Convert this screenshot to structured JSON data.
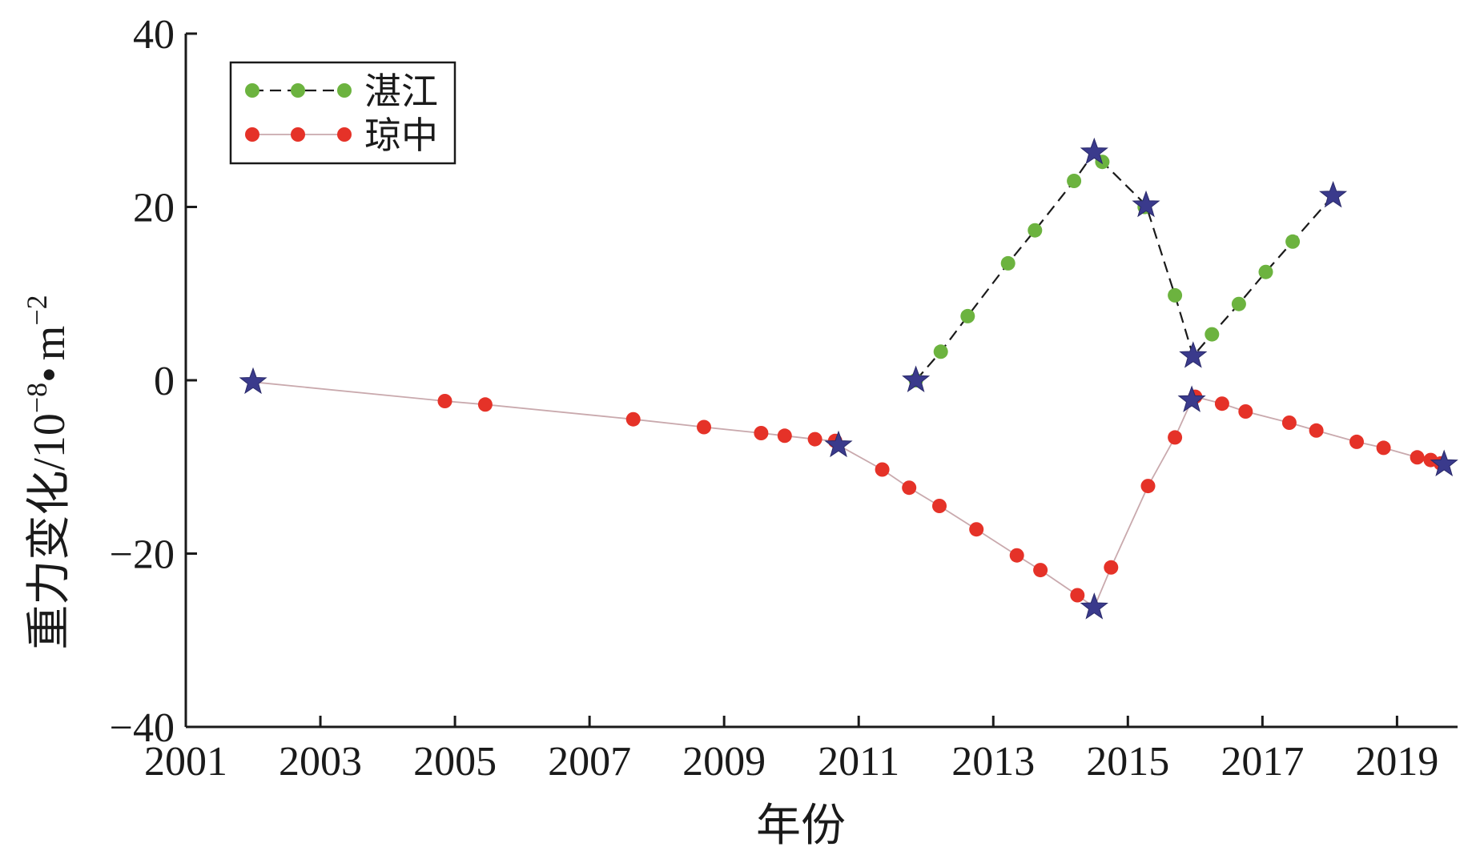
{
  "chart_data": {
    "type": "line",
    "title": "",
    "xlabel": "年份",
    "ylabel": {
      "main": "重力变化/10",
      "exp1": "−8",
      "dot": "•",
      "unit": "m",
      "exp2": "−2"
    },
    "xlim": [
      2001,
      2019.9
    ],
    "ylim": [
      -40,
      40
    ],
    "xticks": [
      2001,
      2003,
      2005,
      2007,
      2009,
      2011,
      2013,
      2015,
      2017,
      2019
    ],
    "xtick_labels": [
      "2001",
      "2003",
      "2005",
      "2007",
      "2009",
      "2011",
      "2013",
      "2015",
      "2017",
      "2019"
    ],
    "yticks": [
      -40,
      -20,
      0,
      20,
      40
    ],
    "ytick_labels": [
      "−40",
      "−20",
      "0",
      "20",
      "40"
    ],
    "legend_position": "top-left",
    "series": [
      {
        "name": "湛江",
        "color": "#6cb33f",
        "line_color": "#1a1a1a",
        "line_style": "dashed",
        "points": [
          [
            2011.85,
            0.0
          ],
          [
            2012.22,
            3.3
          ],
          [
            2012.62,
            7.4
          ],
          [
            2013.22,
            13.5
          ],
          [
            2013.62,
            17.3
          ],
          [
            2014.2,
            23.0
          ],
          [
            2014.62,
            25.2
          ],
          [
            2015.25,
            20.0
          ],
          [
            2015.7,
            9.8
          ],
          [
            2016.25,
            5.3
          ],
          [
            2016.65,
            8.8
          ],
          [
            2017.05,
            12.5
          ],
          [
            2017.45,
            16.0
          ]
        ],
        "star_points": [
          [
            2011.85,
            0.0
          ],
          [
            2014.5,
            26.3
          ],
          [
            2015.27,
            20.2
          ],
          [
            2015.97,
            2.8
          ],
          [
            2018.05,
            21.3
          ]
        ],
        "line_path": [
          [
            2011.85,
            0.0
          ],
          [
            2012.22,
            3.3
          ],
          [
            2012.62,
            7.4
          ],
          [
            2013.22,
            13.5
          ],
          [
            2013.62,
            17.3
          ],
          [
            2014.2,
            23.0
          ],
          [
            2014.5,
            26.3
          ],
          [
            2014.62,
            25.2
          ],
          [
            2015.27,
            20.2
          ],
          [
            2015.7,
            9.8
          ],
          [
            2015.97,
            2.8
          ],
          [
            2016.25,
            5.3
          ],
          [
            2016.65,
            8.8
          ],
          [
            2017.05,
            12.5
          ],
          [
            2017.45,
            16.0
          ],
          [
            2018.05,
            21.3
          ]
        ]
      },
      {
        "name": "琼中",
        "color": "#e53228",
        "line_color": "#c9a9ad",
        "line_style": "solid",
        "points": [
          [
            2004.85,
            -2.4
          ],
          [
            2005.45,
            -2.8
          ],
          [
            2007.65,
            -4.5
          ],
          [
            2008.7,
            -5.4
          ],
          [
            2009.55,
            -6.1
          ],
          [
            2009.9,
            -6.4
          ],
          [
            2010.35,
            -6.8
          ],
          [
            2010.65,
            -7.0
          ],
          [
            2011.35,
            -10.3
          ],
          [
            2011.75,
            -12.4
          ],
          [
            2012.2,
            -14.5
          ],
          [
            2012.75,
            -17.2
          ],
          [
            2013.35,
            -20.2
          ],
          [
            2013.7,
            -21.9
          ],
          [
            2014.25,
            -24.8
          ],
          [
            2014.75,
            -21.6
          ],
          [
            2015.3,
            -12.2
          ],
          [
            2015.7,
            -6.6
          ],
          [
            2016.0,
            -1.9
          ],
          [
            2016.4,
            -2.7
          ],
          [
            2016.75,
            -3.6
          ],
          [
            2017.4,
            -4.9
          ],
          [
            2017.8,
            -5.8
          ],
          [
            2018.4,
            -7.1
          ],
          [
            2018.8,
            -7.8
          ],
          [
            2019.3,
            -8.9
          ],
          [
            2019.5,
            -9.2
          ],
          [
            2019.65,
            -9.6
          ]
        ],
        "star_points": [
          [
            2002.0,
            -0.2
          ],
          [
            2010.7,
            -7.5
          ],
          [
            2014.5,
            -26.2
          ],
          [
            2015.95,
            -2.3
          ],
          [
            2019.7,
            -9.7
          ]
        ],
        "line_path": [
          [
            2002.0,
            -0.2
          ],
          [
            2004.85,
            -2.4
          ],
          [
            2005.45,
            -2.8
          ],
          [
            2007.65,
            -4.5
          ],
          [
            2008.7,
            -5.4
          ],
          [
            2009.55,
            -6.1
          ],
          [
            2009.9,
            -6.4
          ],
          [
            2010.35,
            -6.8
          ],
          [
            2010.65,
            -7.0
          ],
          [
            2010.7,
            -7.5
          ],
          [
            2011.35,
            -10.3
          ],
          [
            2011.75,
            -12.4
          ],
          [
            2012.2,
            -14.5
          ],
          [
            2012.75,
            -17.2
          ],
          [
            2013.35,
            -20.2
          ],
          [
            2013.7,
            -21.9
          ],
          [
            2014.25,
            -24.8
          ],
          [
            2014.5,
            -26.2
          ],
          [
            2014.75,
            -21.6
          ],
          [
            2015.3,
            -12.2
          ],
          [
            2015.7,
            -6.6
          ],
          [
            2015.95,
            -2.3
          ],
          [
            2016.0,
            -1.9
          ],
          [
            2016.4,
            -2.7
          ],
          [
            2016.75,
            -3.6
          ],
          [
            2017.4,
            -4.9
          ],
          [
            2017.8,
            -5.8
          ],
          [
            2018.4,
            -7.1
          ],
          [
            2018.8,
            -7.8
          ],
          [
            2019.3,
            -8.9
          ],
          [
            2019.5,
            -9.2
          ],
          [
            2019.65,
            -9.6
          ],
          [
            2019.7,
            -9.7
          ]
        ]
      }
    ],
    "star_color": "#3a3a8c"
  }
}
